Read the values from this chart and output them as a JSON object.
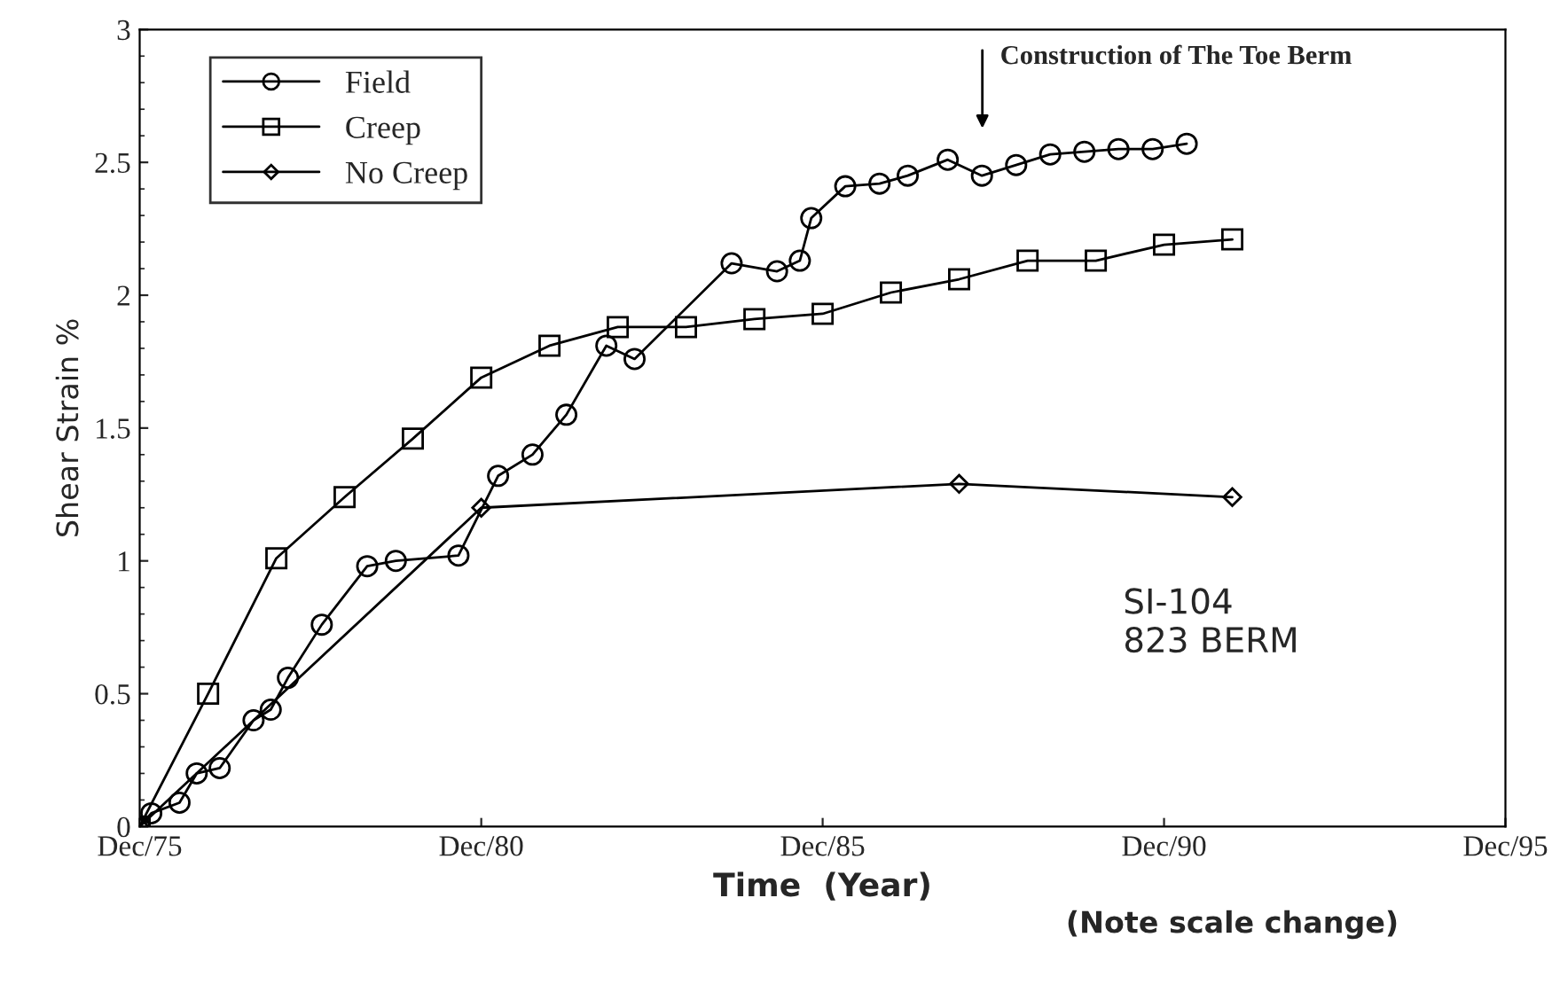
{
  "chart_data": {
    "type": "line",
    "xlabel": "Time  (Year)",
    "ylabel": "Shear Strain %",
    "xlim": [
      "1975-12",
      "1995-12"
    ],
    "xticks": [
      {
        "value": "1975-12",
        "label": "Dec/75"
      },
      {
        "value": "1980-12",
        "label": "Dec/80"
      },
      {
        "value": "1985-12",
        "label": "Dec/85"
      },
      {
        "value": "1990-12",
        "label": "Dec/90"
      },
      {
        "value": "1995-12",
        "label": "Dec/95"
      }
    ],
    "ylim": [
      0,
      3
    ],
    "yticks": [
      0,
      0.5,
      1,
      1.5,
      2,
      2.5,
      3
    ],
    "legend": "top left",
    "line_style": "solid",
    "series": [
      {
        "name": "Field",
        "color": "#000000",
        "marker": "circle",
        "x": [
          "1975-12",
          "1976-02",
          "1976-07",
          "1976-10",
          "1977-02",
          "1977-08",
          "1977-11",
          "1978-02",
          "1978-08",
          "1979-04",
          "1979-09",
          "1980-08",
          "1981-03",
          "1981-09",
          "1982-03",
          "1982-10",
          "1983-03",
          "1984-08",
          "1985-04",
          "1985-08",
          "1985-10",
          "1986-04",
          "1986-10",
          "1987-03",
          "1987-10",
          "1988-04",
          "1988-10",
          "1989-04",
          "1989-10",
          "1990-04",
          "1990-10",
          "1991-04"
        ],
        "values": [
          0,
          0.05,
          0.09,
          0.2,
          0.22,
          0.4,
          0.44,
          0.56,
          0.76,
          0.98,
          1.0,
          1.02,
          1.32,
          1.4,
          1.55,
          1.81,
          1.76,
          2.12,
          2.09,
          2.13,
          2.29,
          2.41,
          2.42,
          2.45,
          2.51,
          2.45,
          2.49,
          2.53,
          2.54,
          2.55,
          2.55,
          2.57
        ]
      },
      {
        "name": "Creep",
        "color": "#000000",
        "marker": "square",
        "x": [
          "1975-12",
          "1976-12",
          "1977-12",
          "1978-12",
          "1979-12",
          "1980-12",
          "1981-12",
          "1982-12",
          "1983-12",
          "1984-12",
          "1985-12",
          "1986-12",
          "1987-12",
          "1988-12",
          "1989-12",
          "1990-12",
          "1991-12"
        ],
        "values": [
          0,
          0.5,
          1.01,
          1.24,
          1.46,
          1.69,
          1.81,
          1.88,
          1.88,
          1.91,
          1.93,
          2.01,
          2.06,
          2.13,
          2.13,
          2.19,
          2.21
        ]
      },
      {
        "name": "No Creep",
        "color": "#000000",
        "marker": "diamond",
        "x": [
          "1975-12",
          "1980-12",
          "1987-12",
          "1991-12"
        ],
        "values": [
          0,
          1.2,
          1.29,
          1.24
        ]
      }
    ],
    "annotations": [
      "Construction of The Toe Berm",
      "SI-104\n823 BERM",
      "(Note scale change)"
    ]
  }
}
